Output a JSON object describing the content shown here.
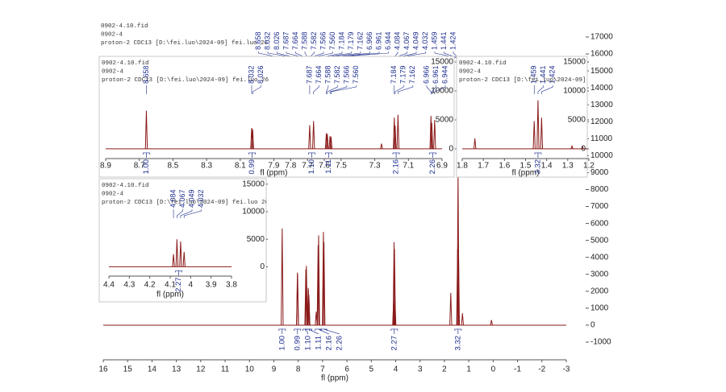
{
  "chart_data": [
    {
      "type": "spectrum",
      "header": [
        "0902-4.10.fid",
        "0902-4",
        "proton-2 CDC13 [D:\\fei.luo\\2024-09] fei.luo 26"
      ],
      "x_label": "fl (ppm)",
      "color": "#8b1a1a",
      "xlim": [
        16,
        -3
      ],
      "xticks": [
        16,
        15,
        14,
        13,
        12,
        11,
        10,
        9,
        8,
        7,
        6,
        5,
        4,
        3,
        2,
        1,
        0,
        -1,
        -2,
        -3
      ],
      "ylim": [
        -1000,
        17000
      ],
      "yticks": [
        -1000,
        0,
        1000,
        2000,
        3000,
        4000,
        5000,
        6000,
        7000,
        8000,
        9000,
        10000,
        11000,
        12000,
        13000,
        14000,
        15000,
        16000,
        17000
      ],
      "peaks": {
        "x": [
          8.658,
          8.032,
          8.026,
          7.687,
          7.664,
          7.588,
          7.582,
          7.566,
          7.56,
          7.26,
          7.184,
          7.179,
          7.162,
          6.966,
          6.961,
          6.944,
          4.084,
          4.067,
          4.049,
          4.032,
          1.74,
          1.459,
          1.441,
          1.424,
          1.26,
          0.07
        ],
        "values": [
          5700,
          3100,
          3000,
          3300,
          3500,
          2200,
          2100,
          1800,
          1700,
          800,
          4700,
          3600,
          5300,
          5500,
          4300,
          4900,
          1500,
          4900,
          4500,
          1600,
          1900,
          4500,
          9000,
          4800,
          700,
          300
        ]
      },
      "peak_labels": [
        {
          "value": 8.658,
          "label": "8.658"
        },
        {
          "value": 8.032,
          "label": "8.032"
        },
        {
          "value": 8.026,
          "label": "8.026"
        },
        {
          "value": 7.687,
          "label": "7.687"
        },
        {
          "value": 7.664,
          "label": "7.664"
        },
        {
          "value": 7.588,
          "label": "7.588"
        },
        {
          "value": 7.582,
          "label": "7.582"
        },
        {
          "value": 7.566,
          "label": "7.566"
        },
        {
          "value": 7.56,
          "label": "7.560"
        },
        {
          "value": 7.184,
          "label": "7.184"
        },
        {
          "value": 7.179,
          "label": "7.179"
        },
        {
          "value": 7.162,
          "label": "7.162"
        },
        {
          "value": 6.966,
          "label": "6.966"
        },
        {
          "value": 6.961,
          "label": "6.961"
        },
        {
          "value": 6.944,
          "label": "6.944"
        },
        {
          "value": 4.084,
          "label": "4.084"
        },
        {
          "value": 4.067,
          "label": "4.067"
        },
        {
          "value": 4.049,
          "label": "4.049"
        },
        {
          "value": 4.032,
          "label": "4.032"
        },
        {
          "value": 1.459,
          "label": "1.459"
        },
        {
          "value": 1.441,
          "label": "1.441"
        },
        {
          "value": 1.424,
          "label": "1.424"
        }
      ],
      "integrals": [
        {
          "x": 8.658,
          "label": "1.00"
        },
        {
          "x": 8.029,
          "label": "0.99"
        },
        {
          "x": 7.675,
          "label": "1.10"
        },
        {
          "x": 7.574,
          "label": "1.11"
        },
        {
          "x": 7.173,
          "label": "2.16"
        },
        {
          "x": 6.955,
          "label": "2.26"
        },
        {
          "x": 4.058,
          "label": "2.27"
        },
        {
          "x": 1.441,
          "label": "3.32"
        }
      ]
    },
    {
      "type": "spectrum",
      "header": [
        "0902-4.10.fid",
        "0902-4",
        "proton-2 CDC13 [D:\\fei.luo\\2024-09] fei.luo 26"
      ],
      "x_label": "fl (ppm)",
      "color": "#8b1a1a",
      "xlim": [
        8.9,
        6.9
      ],
      "xticks": [
        8.9,
        8.7,
        8.5,
        8.3,
        8.1,
        7.9,
        7.8,
        7.7,
        7.6,
        7.5,
        7.3,
        7.1,
        6.9
      ],
      "ylim": [
        -1400,
        15700
      ],
      "yticks": [
        0,
        5000,
        10000,
        15000
      ],
      "peaks": {
        "x": [
          8.658,
          8.032,
          8.026,
          7.687,
          7.664,
          7.588,
          7.582,
          7.566,
          7.56,
          7.26,
          7.184,
          7.179,
          7.162,
          6.966,
          6.961,
          6.944
        ],
        "values": [
          6600,
          3600,
          3400,
          4100,
          4800,
          2700,
          2600,
          2200,
          2100,
          900,
          5400,
          4000,
          5900,
          5700,
          4500,
          5000
        ]
      },
      "peak_labels": [
        {
          "value": 8.658,
          "label": "8.658"
        },
        {
          "value": 8.032,
          "label": "8.032"
        },
        {
          "value": 8.026,
          "label": "8.026"
        },
        {
          "value": 7.687,
          "label": "7.687"
        },
        {
          "value": 7.664,
          "label": "7.664"
        },
        {
          "value": 7.588,
          "label": "7.588"
        },
        {
          "value": 7.582,
          "label": "7.582"
        },
        {
          "value": 7.566,
          "label": "7.566"
        },
        {
          "value": 7.56,
          "label": "7.560"
        },
        {
          "value": 7.184,
          "label": "7.184"
        },
        {
          "value": 7.179,
          "label": "7.179"
        },
        {
          "value": 7.162,
          "label": "7.162"
        },
        {
          "value": 6.966,
          "label": "6.966"
        },
        {
          "value": 6.961,
          "label": "6.961"
        },
        {
          "value": 6.944,
          "label": "6.944"
        }
      ],
      "integrals": [
        {
          "x": 8.658,
          "label": "1.00"
        },
        {
          "x": 8.029,
          "label": "0.99"
        },
        {
          "x": 7.675,
          "label": "1.10"
        },
        {
          "x": 7.574,
          "label": "1.11"
        },
        {
          "x": 7.173,
          "label": "2.16"
        },
        {
          "x": 6.955,
          "label": "2.26"
        }
      ]
    },
    {
      "type": "spectrum",
      "header": [
        "0902-4.10.fid",
        "0902-4",
        "proton-2 CDC13 [D:\\fei.luo\\2024-09] fei.luo 26"
      ],
      "x_label": "fl (ppm)",
      "color": "#8b1a1a",
      "xlim": [
        1.8,
        1.2
      ],
      "xticks": [
        1.8,
        1.7,
        1.6,
        1.5,
        1.4,
        1.3,
        1.2
      ],
      "ylim": [
        -1400,
        15700
      ],
      "yticks": [
        0,
        5000,
        10000,
        15000
      ],
      "peaks": {
        "x": [
          1.74,
          1.459,
          1.441,
          1.424,
          1.28,
          1.23
        ],
        "values": [
          1800,
          4800,
          8400,
          5400,
          500,
          400
        ]
      },
      "peak_labels": [
        {
          "value": 1.459,
          "label": "1.459"
        },
        {
          "value": 1.441,
          "label": "1.441"
        },
        {
          "value": 1.424,
          "label": "1.424"
        }
      ],
      "integrals": [
        {
          "x": 1.441,
          "label": "3.32"
        }
      ]
    },
    {
      "type": "spectrum",
      "header": [
        "0902-4.10.fid",
        "0902-4",
        "proton-2 CDC13 [D:\\fei.luo\\2024-09] fei.luo 26"
      ],
      "x_label": "fl (ppm)",
      "color": "#8b1a1a",
      "xlim": [
        4.4,
        3.8
      ],
      "xticks": [
        4.4,
        4.3,
        4.2,
        4.1,
        4,
        3.9,
        3.8
      ],
      "ylim": [
        -1400,
        15700
      ],
      "yticks": [
        0,
        5000,
        10000,
        15000
      ],
      "peaks": {
        "x": [
          4.084,
          4.067,
          4.049,
          4.032
        ],
        "values": [
          2300,
          5000,
          4600,
          2700
        ]
      },
      "peak_labels": [
        {
          "value": 4.084,
          "label": "4.084"
        },
        {
          "value": 4.067,
          "label": "4.067"
        },
        {
          "value": 4.049,
          "label": "4.049"
        },
        {
          "value": 4.032,
          "label": "4.032"
        }
      ],
      "integrals": [
        {
          "x": 4.058,
          "label": "2.27"
        }
      ]
    }
  ]
}
